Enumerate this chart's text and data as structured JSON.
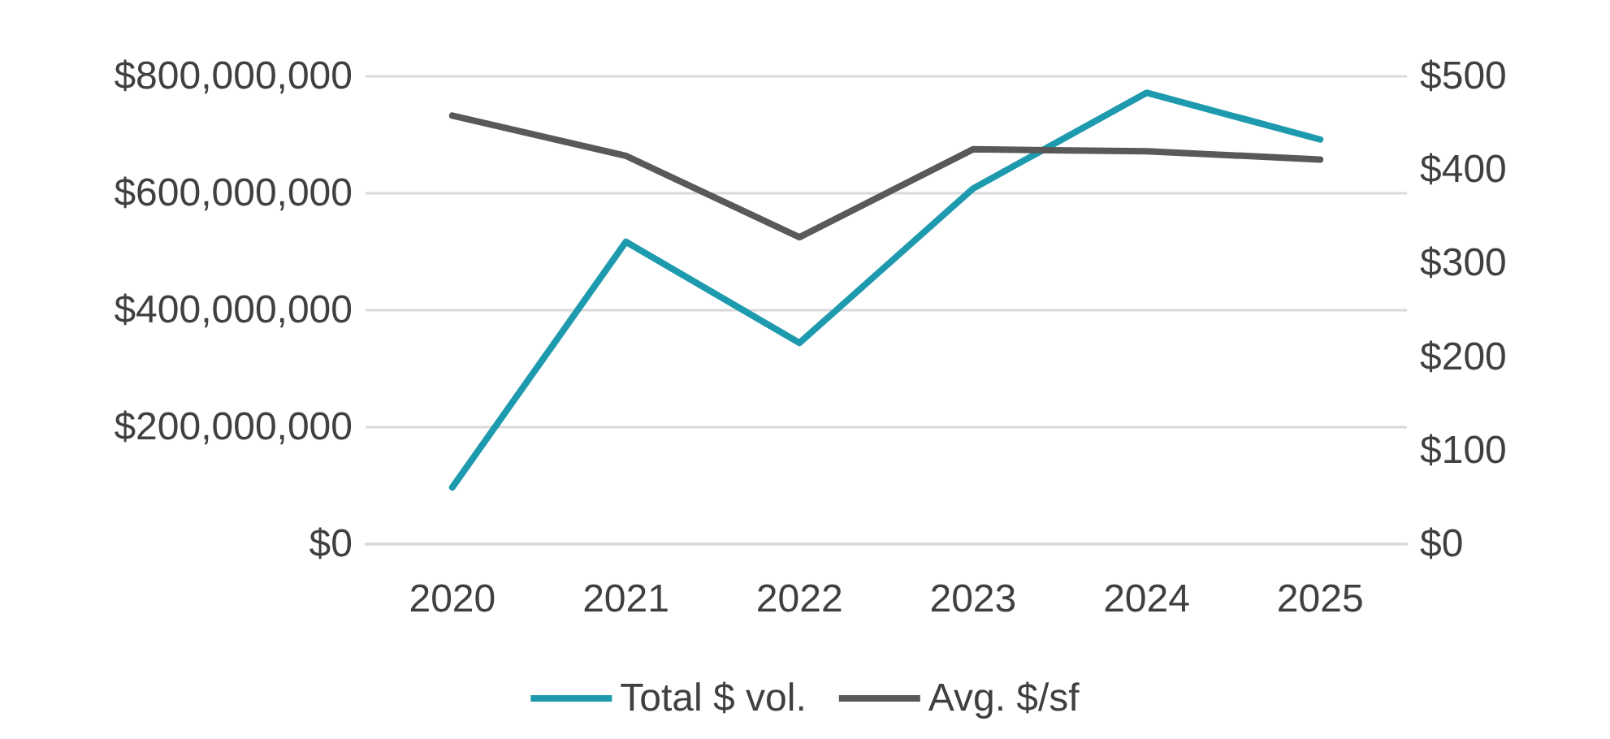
{
  "chart_data": {
    "type": "line",
    "categories": [
      "2020",
      "2021",
      "2022",
      "2023",
      "2024",
      "2025"
    ],
    "series": [
      {
        "name": "Total $ vol.",
        "color": "#1e9aae",
        "values": [
          97000000,
          517000000,
          344000000,
          608000000,
          772000000,
          692000000
        ]
      },
      {
        "name": "Avg. $/sf",
        "color": "#595959",
        "axis": "y2",
        "values": [
          458,
          415,
          328,
          422,
          420,
          411
        ]
      }
    ],
    "ylim": [
      0,
      800000000
    ],
    "yticks": [
      {
        "value": 0,
        "label": "$0"
      },
      {
        "value": 200000000,
        "label": "$200,000,000"
      },
      {
        "value": 400000000,
        "label": "$400,000,000"
      },
      {
        "value": 600000000,
        "label": "$600,000,000"
      },
      {
        "value": 800000000,
        "label": "$800,000,000"
      }
    ],
    "y2lim": [
      0,
      500
    ],
    "y2ticks": [
      {
        "value": 0,
        "label": "$0"
      },
      {
        "value": 100,
        "label": "$100"
      },
      {
        "value": 200,
        "label": "$200"
      },
      {
        "value": 300,
        "label": "$300"
      },
      {
        "value": 400,
        "label": "$400"
      },
      {
        "value": 500,
        "label": "$500"
      }
    ],
    "grid": "y",
    "legend": "bottom",
    "marker": "none",
    "line_style": "solid"
  }
}
